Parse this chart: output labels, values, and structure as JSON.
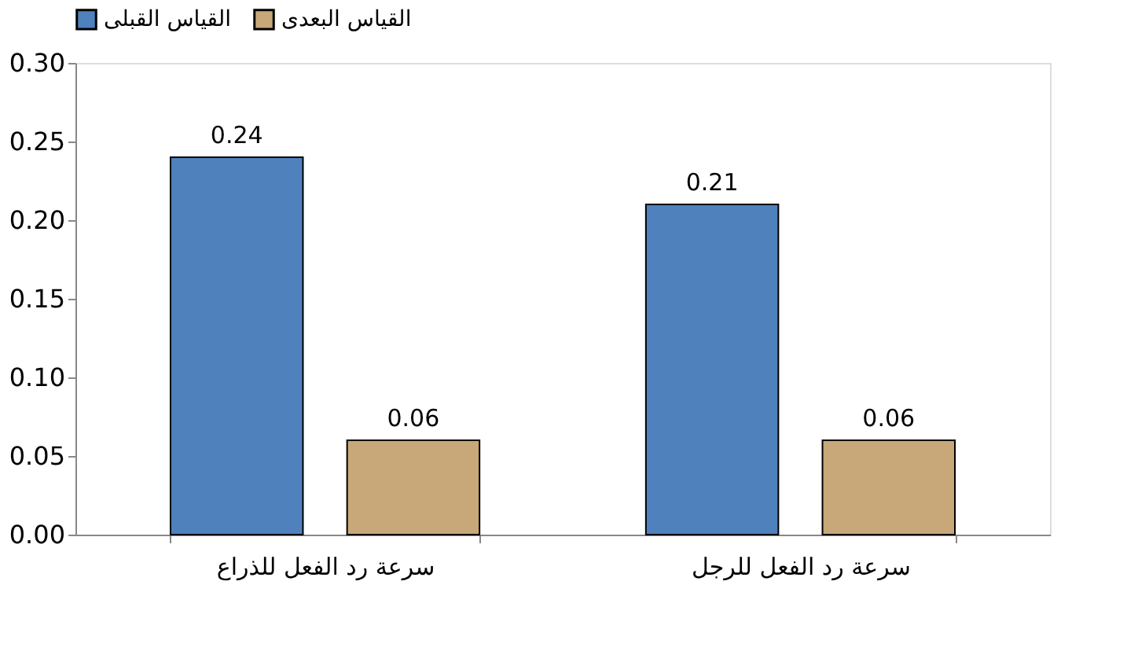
{
  "chart_data": {
    "type": "bar",
    "categories": [
      "سرعة رد الفعل للذراع",
      "سرعة رد الفعل للرجل"
    ],
    "series": [
      {
        "name": "القياس القبلى",
        "color": "#4f81bd",
        "values": [
          0.24,
          0.21
        ]
      },
      {
        "name": "القياس البعدى",
        "color": "#c8a878",
        "values": [
          0.06,
          0.06
        ]
      }
    ],
    "ylim": [
      0,
      0.3
    ],
    "yticks": [
      {
        "value": 0,
        "label": "0.00"
      },
      {
        "value": 0.05,
        "label": "0.05"
      },
      {
        "value": 0.1,
        "label": "0.10"
      },
      {
        "value": 0.15,
        "label": "0.15"
      },
      {
        "value": 0.2,
        "label": "0.20"
      },
      {
        "value": 0.25,
        "label": "0.25"
      },
      {
        "value": 0.3,
        "label": "0.30"
      }
    ],
    "data_labels": true,
    "grid": false,
    "legend": "top"
  }
}
